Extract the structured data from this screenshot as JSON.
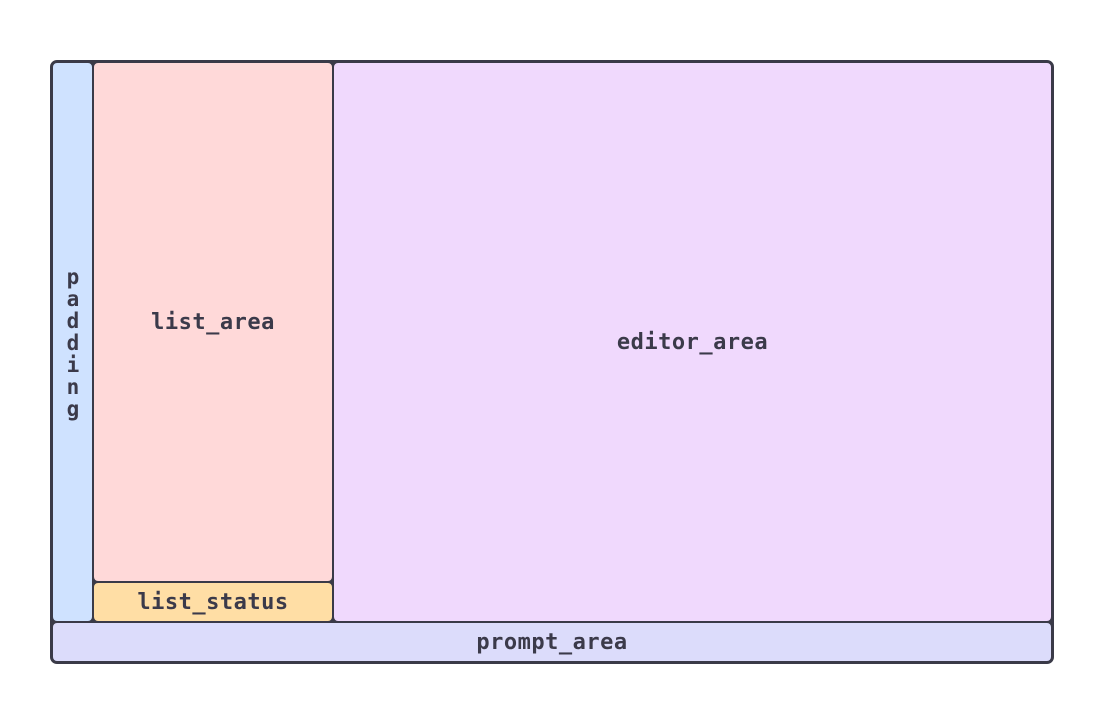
{
  "regions": {
    "padding": {
      "label": "padding",
      "color": "#cfe2ff"
    },
    "list_area": {
      "label": "list_area",
      "color": "#ffd9d9"
    },
    "list_status": {
      "label": "list_status",
      "color": "#ffdea5"
    },
    "editor_area": {
      "label": "editor_area",
      "color": "#f0d9fd"
    },
    "prompt_area": {
      "label": "prompt_area",
      "color": "#dcdcfb"
    }
  },
  "colors": {
    "border": "#3a3a48",
    "text": "#3b3a4a",
    "background": "#ffffff"
  }
}
